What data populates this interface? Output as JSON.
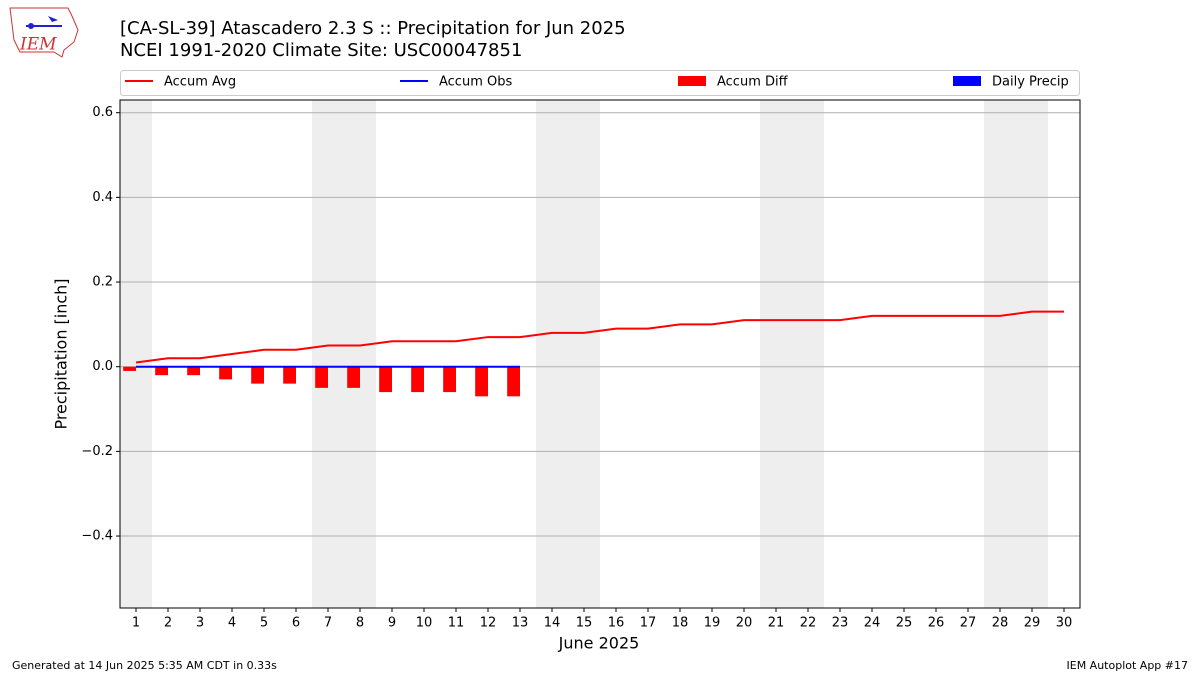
{
  "chart_data": {
    "type": "line",
    "title": "[CA-SL-39] Atascadero 2.3 S :: Precipitation for Jun 2025",
    "subtitle": "NCEI 1991-2020 Climate Site: USC00047851",
    "logo_text": "IEM",
    "x_label": "June 2025",
    "y_label": "Precipitation [inch]",
    "footer_left": "Generated at 14 Jun 2025 5:35 AM CDT in 0.33s",
    "footer_right": "IEM Autoplot App #17",
    "x": [
      1,
      2,
      3,
      4,
      5,
      6,
      7,
      8,
      9,
      10,
      11,
      12,
      13,
      14,
      15,
      16,
      17,
      18,
      19,
      20,
      21,
      22,
      23,
      24,
      25,
      26,
      27,
      28,
      29,
      30
    ],
    "xlim": [
      0.5,
      30.5
    ],
    "xticks": [
      1,
      2,
      3,
      4,
      5,
      6,
      7,
      8,
      9,
      10,
      11,
      12,
      13,
      14,
      15,
      16,
      17,
      18,
      19,
      20,
      21,
      22,
      23,
      24,
      25,
      26,
      27,
      28,
      29,
      30
    ],
    "ylim": [
      -0.57,
      0.63
    ],
    "yticks": [
      {
        "value": -0.4,
        "label": "−0.4"
      },
      {
        "value": -0.2,
        "label": "−0.2"
      },
      {
        "value": 0.0,
        "label": "0.0"
      },
      {
        "value": 0.2,
        "label": "0.2"
      },
      {
        "value": 0.4,
        "label": "0.4"
      },
      {
        "value": 0.6,
        "label": "0.6"
      }
    ],
    "grid": true,
    "series": [
      {
        "name": "Accum Avg",
        "type": "line",
        "color": "#ff0000",
        "values": [
          0.01,
          0.02,
          0.02,
          0.03,
          0.04,
          0.04,
          0.05,
          0.05,
          0.06,
          0.06,
          0.06,
          0.07,
          0.07,
          0.08,
          0.08,
          0.09,
          0.09,
          0.1,
          0.1,
          0.11,
          0.11,
          0.11,
          0.11,
          0.12,
          0.12,
          0.12,
          0.12,
          0.12,
          0.13,
          0.13
        ]
      },
      {
        "name": "Accum Obs",
        "type": "line",
        "color": "#0000ff",
        "values": [
          0,
          0,
          0,
          0,
          0,
          0,
          0,
          0,
          0,
          0,
          0,
          0,
          0,
          null,
          null,
          null,
          null,
          null,
          null,
          null,
          null,
          null,
          null,
          null,
          null,
          null,
          null,
          null,
          null,
          null
        ]
      },
      {
        "name": "Accum Diff",
        "type": "bar",
        "color": "#ff0000",
        "values": [
          -0.01,
          -0.02,
          -0.02,
          -0.03,
          -0.04,
          -0.04,
          -0.05,
          -0.05,
          -0.06,
          -0.06,
          -0.06,
          -0.07,
          -0.07,
          null,
          null,
          null,
          null,
          null,
          null,
          null,
          null,
          null,
          null,
          null,
          null,
          null,
          null,
          null,
          null,
          null
        ]
      },
      {
        "name": "Daily Precip",
        "type": "bar",
        "color": "#0000ff",
        "values": [
          0,
          0,
          0,
          0,
          0,
          0,
          0,
          0,
          0,
          0,
          0,
          0,
          0,
          null,
          null,
          null,
          null,
          null,
          null,
          null,
          null,
          null,
          null,
          null,
          null,
          null,
          null,
          null,
          null,
          null
        ]
      }
    ]
  }
}
